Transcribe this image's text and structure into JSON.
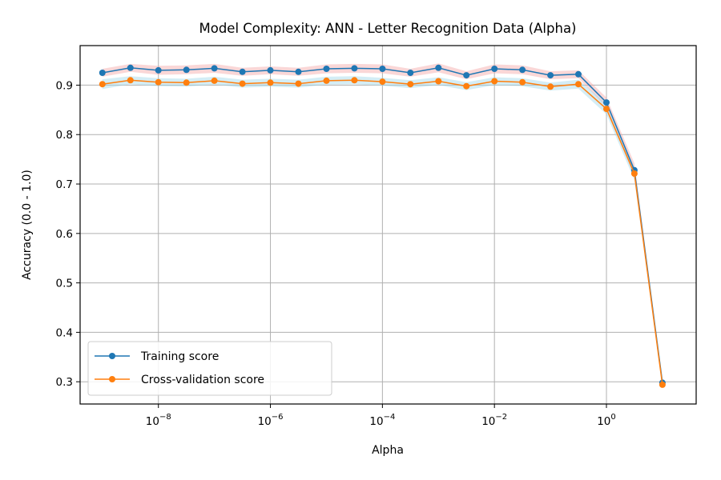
{
  "chart_data": {
    "type": "line",
    "title": "Model Complexity: ANN - Letter Recognition Data (Alpha)",
    "xlabel": "Alpha",
    "ylabel": "Accuracy (0.0 - 1.0)",
    "xscale": "log",
    "xlim": [
      4e-10,
      40
    ],
    "ylim": [
      0.255,
      0.98
    ],
    "grid": true,
    "legend_position": "lower-left",
    "x": [
      1e-09,
      3.16e-09,
      1e-08,
      3.16e-08,
      1e-07,
      3.16e-07,
      1e-06,
      3.16e-06,
      1e-05,
      3.16e-05,
      0.0001,
      0.000316,
      0.001,
      0.00316,
      0.01,
      0.0316,
      0.1,
      0.316,
      1,
      3.16,
      10
    ],
    "xticks": [
      {
        "base": "10",
        "exp": "−8",
        "value": 1e-08
      },
      {
        "base": "10",
        "exp": "−6",
        "value": 1e-06
      },
      {
        "base": "10",
        "exp": "−4",
        "value": 0.0001
      },
      {
        "base": "10",
        "exp": "−2",
        "value": 0.01
      },
      {
        "base": "10",
        "exp": "0",
        "value": 1
      }
    ],
    "yticks": [
      "0.3",
      "0.4",
      "0.5",
      "0.6",
      "0.7",
      "0.8",
      "0.9"
    ],
    "series": [
      {
        "name": "Training score",
        "color": "#1f77b4",
        "band_color": "#f4a6a6",
        "values": [
          0.925,
          0.935,
          0.93,
          0.931,
          0.934,
          0.927,
          0.93,
          0.927,
          0.933,
          0.934,
          0.933,
          0.925,
          0.935,
          0.92,
          0.933,
          0.931,
          0.92,
          0.922,
          0.865,
          0.728,
          0.298
        ],
        "band": [
          0.008,
          0.008,
          0.009,
          0.009,
          0.009,
          0.008,
          0.008,
          0.008,
          0.009,
          0.009,
          0.009,
          0.008,
          0.009,
          0.008,
          0.009,
          0.009,
          0.008,
          0.008,
          0.01,
          0.014,
          0.004
        ]
      },
      {
        "name": "Cross-validation score",
        "color": "#ff7f0e",
        "band_color": "#9fd8e8",
        "values": [
          0.902,
          0.91,
          0.906,
          0.905,
          0.909,
          0.903,
          0.905,
          0.903,
          0.909,
          0.91,
          0.907,
          0.902,
          0.908,
          0.898,
          0.908,
          0.906,
          0.897,
          0.902,
          0.852,
          0.721,
          0.294
        ],
        "band": [
          0.01,
          0.008,
          0.008,
          0.008,
          0.008,
          0.008,
          0.008,
          0.008,
          0.008,
          0.008,
          0.008,
          0.008,
          0.008,
          0.008,
          0.008,
          0.008,
          0.008,
          0.009,
          0.011,
          0.013,
          0.004
        ]
      }
    ]
  }
}
